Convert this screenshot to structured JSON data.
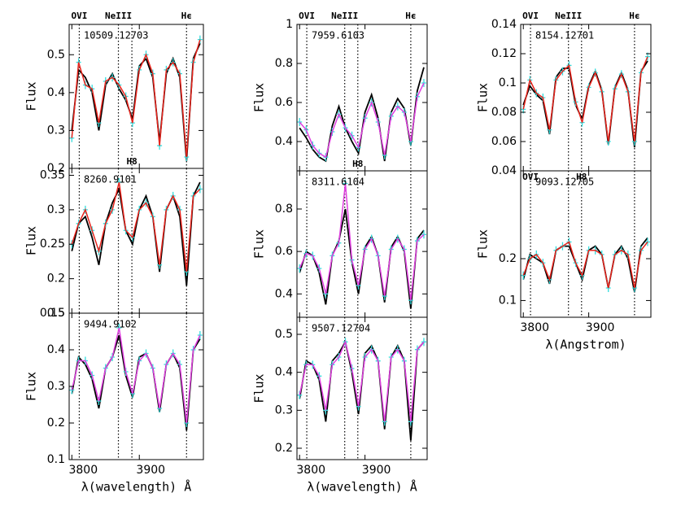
{
  "chart_data": [
    {
      "type": "line",
      "title": "10509.12703",
      "ylabel": "Flux",
      "x": [
        3800,
        3810,
        3820,
        3830,
        3840,
        3850,
        3860,
        3870,
        3880,
        3890,
        3900,
        3910,
        3920,
        3930,
        3940,
        3950,
        3960,
        3970,
        3980,
        3990
      ],
      "series": [
        {
          "color": "#000000",
          "values": [
            0.3,
            0.46,
            0.44,
            0.4,
            0.3,
            0.42,
            0.45,
            0.41,
            0.38,
            0.33,
            0.47,
            0.49,
            0.44,
            0.27,
            0.45,
            0.49,
            0.44,
            0.22,
            0.49,
            0.53
          ]
        },
        {
          "color": "#e8231b",
          "marker_color": "#33dddd",
          "values": [
            0.28,
            0.48,
            0.42,
            0.41,
            0.32,
            0.43,
            0.44,
            0.42,
            0.39,
            0.32,
            0.46,
            0.5,
            0.45,
            0.26,
            0.46,
            0.48,
            0.45,
            0.23,
            0.48,
            0.54
          ]
        }
      ],
      "xlim": [
        3796,
        3995
      ],
      "xticks": [
        3800,
        3900
      ],
      "show_xtick_labels": false,
      "ylim": [
        0.2,
        0.58
      ],
      "yticks": [
        0.2,
        0.3,
        0.4,
        0.5
      ],
      "vlines": [
        3811,
        3869,
        3889,
        3970
      ],
      "line_labels": [
        {
          "x": 3811,
          "text": "OVI",
          "position": "above"
        },
        {
          "x": 3869,
          "text": "NeIII",
          "position": "above"
        },
        {
          "x": 3889,
          "text": "H8",
          "position": "inside-bottom"
        },
        {
          "x": 3970,
          "text": "Hϵ",
          "position": "above"
        }
      ]
    },
    {
      "type": "line",
      "title": "8260.9101",
      "ylabel": "Flux",
      "x": [
        3800,
        3810,
        3820,
        3830,
        3840,
        3850,
        3860,
        3870,
        3880,
        3890,
        3900,
        3910,
        3920,
        3930,
        3940,
        3950,
        3960,
        3970,
        3980,
        3990
      ],
      "series": [
        {
          "color": "#000000",
          "values": [
            0.24,
            0.28,
            0.29,
            0.26,
            0.22,
            0.28,
            0.31,
            0.33,
            0.27,
            0.25,
            0.3,
            0.32,
            0.29,
            0.21,
            0.3,
            0.32,
            0.29,
            0.19,
            0.32,
            0.34
          ]
        },
        {
          "color": "#e8231b",
          "marker_color": "#33dddd",
          "values": [
            0.25,
            0.28,
            0.3,
            0.27,
            0.24,
            0.28,
            0.3,
            0.34,
            0.27,
            0.26,
            0.3,
            0.31,
            0.29,
            0.22,
            0.3,
            0.32,
            0.3,
            0.21,
            0.32,
            0.33
          ]
        }
      ],
      "xlim": [
        3796,
        3995
      ],
      "xticks": [
        3800,
        3900
      ],
      "show_xtick_labels": false,
      "ylim": [
        0.15,
        0.36
      ],
      "yticks": [
        0.15,
        0.2,
        0.25,
        0.3,
        0.35
      ],
      "vlines": [
        3811,
        3869,
        3889,
        3970
      ],
      "line_labels": []
    },
    {
      "type": "line",
      "title": "9494.9102",
      "ylabel": "Flux",
      "xlabel": "λ(wavelength) Å",
      "x": [
        3800,
        3810,
        3820,
        3830,
        3840,
        3850,
        3860,
        3870,
        3880,
        3890,
        3900,
        3910,
        3920,
        3930,
        3940,
        3950,
        3960,
        3970,
        3980,
        3990
      ],
      "series": [
        {
          "color": "#000000",
          "values": [
            0.28,
            0.38,
            0.36,
            0.32,
            0.24,
            0.35,
            0.38,
            0.44,
            0.33,
            0.27,
            0.38,
            0.39,
            0.35,
            0.23,
            0.36,
            0.39,
            0.35,
            0.18,
            0.4,
            0.43
          ]
        },
        {
          "color": "#e040e0",
          "marker_color": "#33dddd",
          "values": [
            0.29,
            0.37,
            0.37,
            0.33,
            0.26,
            0.35,
            0.38,
            0.46,
            0.34,
            0.28,
            0.37,
            0.39,
            0.35,
            0.24,
            0.36,
            0.39,
            0.36,
            0.2,
            0.4,
            0.44
          ]
        }
      ],
      "xlim": [
        3796,
        3995
      ],
      "xticks": [
        3800,
        3900
      ],
      "show_xtick_labels": true,
      "ylim": [
        0.1,
        0.5
      ],
      "yticks": [
        0.1,
        0.2,
        0.3,
        0.4,
        0.5
      ],
      "vlines": [
        3811,
        3869,
        3889,
        3970
      ],
      "line_labels": []
    },
    {
      "type": "line",
      "title": "7959.6103",
      "ylabel": "Flux",
      "x": [
        3800,
        3810,
        3820,
        3830,
        3840,
        3850,
        3860,
        3870,
        3880,
        3890,
        3900,
        3910,
        3920,
        3930,
        3940,
        3950,
        3960,
        3970,
        3980,
        3990
      ],
      "series": [
        {
          "color": "#000000",
          "values": [
            0.47,
            0.42,
            0.36,
            0.32,
            0.3,
            0.48,
            0.58,
            0.47,
            0.4,
            0.34,
            0.55,
            0.64,
            0.52,
            0.3,
            0.55,
            0.62,
            0.57,
            0.38,
            0.66,
            0.78
          ]
        },
        {
          "color": "#e040e0",
          "marker_color": "#33dddd",
          "values": [
            0.5,
            0.46,
            0.38,
            0.34,
            0.32,
            0.45,
            0.54,
            0.47,
            0.43,
            0.37,
            0.52,
            0.6,
            0.5,
            0.33,
            0.53,
            0.58,
            0.55,
            0.4,
            0.63,
            0.7
          ]
        }
      ],
      "xlim": [
        3796,
        3995
      ],
      "xticks": [
        3800,
        3900
      ],
      "show_xtick_labels": false,
      "ylim": [
        0.25,
        1
      ],
      "yticks": [
        0.4,
        0.6,
        0.8,
        1
      ],
      "vlines": [
        3811,
        3869,
        3889,
        3970
      ],
      "line_labels": [
        {
          "x": 3811,
          "text": "OVI",
          "position": "above"
        },
        {
          "x": 3869,
          "text": "NeIII",
          "position": "above"
        },
        {
          "x": 3889,
          "text": "H8",
          "position": "inside-bottom"
        },
        {
          "x": 3970,
          "text": "Hϵ",
          "position": "above"
        }
      ]
    },
    {
      "type": "line",
      "title": "8311.6104",
      "ylabel": "Flux",
      "x": [
        3800,
        3810,
        3820,
        3830,
        3840,
        3850,
        3860,
        3870,
        3880,
        3890,
        3900,
        3910,
        3920,
        3930,
        3940,
        3950,
        3960,
        3970,
        3980,
        3990
      ],
      "series": [
        {
          "color": "#000000",
          "values": [
            0.5,
            0.6,
            0.58,
            0.5,
            0.35,
            0.58,
            0.65,
            0.8,
            0.55,
            0.4,
            0.62,
            0.67,
            0.58,
            0.36,
            0.62,
            0.67,
            0.6,
            0.33,
            0.66,
            0.7
          ]
        },
        {
          "color": "#e040e0",
          "marker_color": "#33dddd",
          "values": [
            0.52,
            0.59,
            0.58,
            0.52,
            0.4,
            0.58,
            0.64,
            0.92,
            0.56,
            0.44,
            0.61,
            0.66,
            0.58,
            0.39,
            0.61,
            0.66,
            0.61,
            0.37,
            0.65,
            0.68
          ]
        }
      ],
      "xlim": [
        3796,
        3995
      ],
      "xticks": [
        3800,
        3900
      ],
      "show_xtick_labels": false,
      "ylim": [
        0.29,
        0.98
      ],
      "yticks": [
        0.4,
        0.6,
        0.8
      ],
      "vlines": [
        3811,
        3869,
        3889,
        3970
      ],
      "line_labels": []
    },
    {
      "type": "line",
      "title": "9507.12704",
      "ylabel": "Flux",
      "xlabel": "λ(wavelength) Å",
      "x": [
        3800,
        3810,
        3820,
        3830,
        3840,
        3850,
        3860,
        3870,
        3880,
        3890,
        3900,
        3910,
        3920,
        3930,
        3940,
        3950,
        3960,
        3970,
        3980,
        3990
      ],
      "series": [
        {
          "color": "#000000",
          "values": [
            0.33,
            0.43,
            0.42,
            0.38,
            0.27,
            0.43,
            0.45,
            0.48,
            0.4,
            0.29,
            0.45,
            0.47,
            0.43,
            0.25,
            0.44,
            0.47,
            0.43,
            0.22,
            0.46,
            0.48
          ]
        },
        {
          "color": "#e040e0",
          "marker_color": "#33dddd",
          "values": [
            0.34,
            0.42,
            0.42,
            0.39,
            0.3,
            0.42,
            0.44,
            0.48,
            0.41,
            0.31,
            0.44,
            0.46,
            0.43,
            0.27,
            0.44,
            0.46,
            0.43,
            0.27,
            0.46,
            0.48
          ]
        }
      ],
      "xlim": [
        3796,
        3995
      ],
      "xticks": [
        3800,
        3900
      ],
      "show_xtick_labels": true,
      "ylim": [
        0.17,
        0.545
      ],
      "yticks": [
        0.2,
        0.3,
        0.4,
        0.5
      ],
      "vlines": [
        3811,
        3869,
        3889,
        3970
      ],
      "line_labels": []
    },
    {
      "type": "line",
      "title": "8154.12701",
      "ylabel": "Flux",
      "x": [
        3800,
        3810,
        3820,
        3830,
        3840,
        3850,
        3860,
        3870,
        3880,
        3890,
        3900,
        3910,
        3920,
        3930,
        3940,
        3950,
        3960,
        3970,
        3980,
        3990
      ],
      "series": [
        {
          "color": "#000000",
          "values": [
            0.085,
            0.098,
            0.092,
            0.088,
            0.065,
            0.104,
            0.11,
            0.11,
            0.085,
            0.075,
            0.098,
            0.108,
            0.095,
            0.058,
            0.097,
            0.107,
            0.095,
            0.056,
            0.108,
            0.115
          ]
        },
        {
          "color": "#e8231b",
          "marker_color": "#33dddd",
          "values": [
            0.082,
            0.102,
            0.093,
            0.09,
            0.068,
            0.102,
            0.108,
            0.112,
            0.087,
            0.073,
            0.097,
            0.107,
            0.094,
            0.06,
            0.096,
            0.106,
            0.094,
            0.06,
            0.107,
            0.118
          ]
        }
      ],
      "xlim": [
        3796,
        3995
      ],
      "xticks": [
        3800,
        3900
      ],
      "show_xtick_labels": false,
      "ylim": [
        0.04,
        0.14
      ],
      "yticks": [
        0.04,
        0.06,
        0.08,
        0.1,
        0.12,
        0.14
      ],
      "vlines": [
        3811,
        3869,
        3889,
        3970
      ],
      "line_labels": [
        {
          "x": 3811,
          "text": "OVI",
          "position": "above"
        },
        {
          "x": 3869,
          "text": "NeIII",
          "position": "above"
        },
        {
          "x": 3970,
          "text": "Hϵ",
          "position": "above"
        }
      ]
    },
    {
      "type": "line",
      "title": "9093.12705",
      "ylabel": "Flux",
      "xlabel": "λ(Angstrom)",
      "x": [
        3800,
        3810,
        3820,
        3830,
        3840,
        3850,
        3860,
        3870,
        3880,
        3890,
        3900,
        3910,
        3920,
        3930,
        3940,
        3950,
        3960,
        3970,
        3980,
        3990
      ],
      "series": [
        {
          "color": "#000000",
          "values": [
            0.15,
            0.21,
            0.2,
            0.19,
            0.14,
            0.22,
            0.23,
            0.23,
            0.19,
            0.15,
            0.22,
            0.23,
            0.21,
            0.13,
            0.21,
            0.23,
            0.2,
            0.12,
            0.23,
            0.25
          ]
        },
        {
          "color": "#e8231b",
          "marker_color": "#33dddd",
          "values": [
            0.16,
            0.2,
            0.21,
            0.19,
            0.15,
            0.22,
            0.23,
            0.24,
            0.19,
            0.16,
            0.22,
            0.22,
            0.21,
            0.13,
            0.21,
            0.22,
            0.21,
            0.13,
            0.22,
            0.24
          ]
        }
      ],
      "xlim": [
        3796,
        3995
      ],
      "xticks": [
        3800,
        3900
      ],
      "show_xtick_labels": true,
      "ylim": [
        0.06,
        0.41
      ],
      "yticks": [
        0.1,
        0.2
      ],
      "vlines": [
        3811,
        3869,
        3889,
        3970
      ],
      "line_labels": [
        {
          "x": 3811,
          "text": "OVI",
          "position": "inside-top"
        },
        {
          "x": 3889,
          "text": "H8",
          "position": "inside-top"
        }
      ]
    }
  ]
}
